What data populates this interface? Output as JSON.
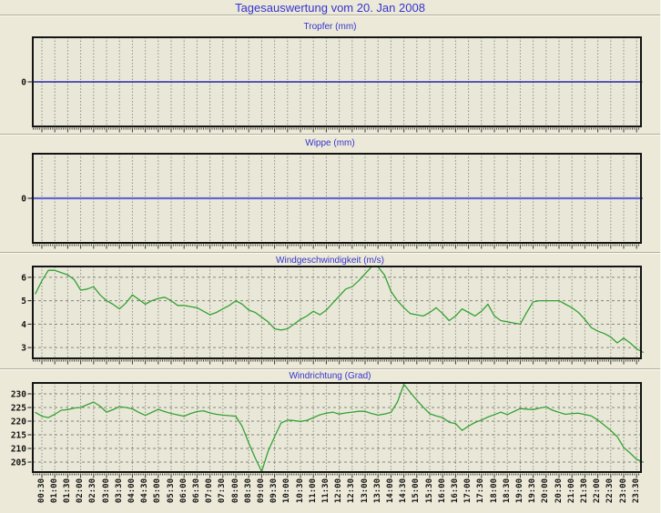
{
  "page": {
    "title": "Tagesauswertung vom 20. Jan 2008",
    "title_color": "#3434cf",
    "background": "#ece9d8",
    "plot_background": "#e9e8d8"
  },
  "x_axis": {
    "start_minutes": 30,
    "step_minutes": 30,
    "labels": [
      "00:30",
      "01:00",
      "01:30",
      "02:00",
      "02:30",
      "03:00",
      "03:30",
      "04:00",
      "04:30",
      "05:00",
      "05:30",
      "06:00",
      "06:30",
      "07:00",
      "07:30",
      "08:00",
      "08:30",
      "09:00",
      "09:30",
      "10:00",
      "10:30",
      "11:00",
      "11:30",
      "12:00",
      "12:30",
      "13:00",
      "13:30",
      "14:00",
      "14:30",
      "15:00",
      "15:30",
      "16:00",
      "16:30",
      "17:00",
      "17:30",
      "18:00",
      "18:30",
      "19:00",
      "19:30",
      "20:00",
      "20:30",
      "21:00",
      "21:30",
      "22:00",
      "22:30",
      "23:00",
      "23:30"
    ]
  },
  "chart_data": [
    {
      "id": "tropfer",
      "type": "line",
      "title": "Tropfer (mm)",
      "ylabel": "mm",
      "yticks": [
        0
      ],
      "ylim": [
        -1,
        1
      ],
      "hgrid": false,
      "line_color": "#0000a0",
      "line_width": 1.2,
      "times": [
        "00:07",
        "23:42"
      ],
      "values": [
        0,
        0
      ]
    },
    {
      "id": "wippe",
      "type": "line",
      "title": "Wippe (mm)",
      "ylabel": "mm",
      "yticks": [
        0
      ],
      "ylim": [
        -1,
        1
      ],
      "hgrid": false,
      "line_color": "#6565cf",
      "line_width": 2.2,
      "times": [
        "00:07",
        "23:42"
      ],
      "values": [
        0,
        0
      ]
    },
    {
      "id": "windgeschwindigkeit",
      "type": "line",
      "title": "Windgeschwindigkeit (m/s)",
      "ylabel": "m/s",
      "yticks": [
        6,
        5,
        4,
        3
      ],
      "ylim": [
        2.5,
        6.5
      ],
      "hgrid": true,
      "line_color": "#35a135",
      "line_width": 1.3,
      "times": [
        "00:15",
        "00:30",
        "00:45",
        "01:00",
        "01:15",
        "01:30",
        "01:45",
        "02:00",
        "02:15",
        "02:30",
        "02:45",
        "03:00",
        "03:15",
        "03:30",
        "03:45",
        "04:00",
        "04:15",
        "04:30",
        "04:45",
        "05:00",
        "05:15",
        "05:30",
        "05:45",
        "06:00",
        "06:15",
        "06:30",
        "06:45",
        "07:00",
        "07:15",
        "07:30",
        "07:45",
        "08:00",
        "08:15",
        "08:30",
        "08:45",
        "09:00",
        "09:15",
        "09:30",
        "09:45",
        "10:00",
        "10:15",
        "10:30",
        "10:45",
        "11:00",
        "11:15",
        "11:30",
        "11:45",
        "12:00",
        "12:15",
        "12:30",
        "12:45",
        "13:00",
        "13:15",
        "13:30",
        "13:45",
        "14:00",
        "14:15",
        "14:30",
        "14:45",
        "15:00",
        "15:15",
        "15:30",
        "15:45",
        "16:00",
        "16:15",
        "16:30",
        "16:45",
        "17:00",
        "17:15",
        "17:30",
        "17:45",
        "18:00",
        "18:15",
        "18:30",
        "18:45",
        "19:00",
        "19:15",
        "19:30",
        "19:45",
        "20:00",
        "20:15",
        "20:30",
        "20:45",
        "21:00",
        "21:15",
        "21:30",
        "21:45",
        "22:00",
        "22:15",
        "22:30",
        "22:45",
        "23:00",
        "23:15",
        "23:30",
        "23:45"
      ],
      "values": [
        5.3,
        5.85,
        6.3,
        6.3,
        6.2,
        6.1,
        5.9,
        5.45,
        5.5,
        5.6,
        5.25,
        5.0,
        4.85,
        4.65,
        4.9,
        5.25,
        5.05,
        4.85,
        5.0,
        5.1,
        5.15,
        5.0,
        4.8,
        4.8,
        4.75,
        4.7,
        4.55,
        4.4,
        4.5,
        4.65,
        4.8,
        5.0,
        4.85,
        4.6,
        4.5,
        4.3,
        4.1,
        3.8,
        3.75,
        3.8,
        4.0,
        4.2,
        4.35,
        4.55,
        4.4,
        4.6,
        4.9,
        5.2,
        5.5,
        5.6,
        5.85,
        6.15,
        6.45,
        6.45,
        6.1,
        5.4,
        5.0,
        4.7,
        4.45,
        4.4,
        4.35,
        4.5,
        4.7,
        4.45,
        4.15,
        4.35,
        4.65,
        4.5,
        4.35,
        4.55,
        4.85,
        4.35,
        4.15,
        4.1,
        4.05,
        4.0,
        4.5,
        4.95,
        5.0,
        5.0,
        5.0,
        5.0,
        4.85,
        4.7,
        4.5,
        4.2,
        3.85,
        3.7,
        3.6,
        3.45,
        3.2,
        3.4,
        3.2,
        2.95,
        2.8
      ]
    },
    {
      "id": "windrichtung",
      "type": "line",
      "title": "Windrichtung (Grad)",
      "ylabel": "Grad",
      "yticks": [
        230,
        225,
        220,
        215,
        210,
        205
      ],
      "ylim": [
        201,
        234.33
      ],
      "hgrid": true,
      "line_color": "#35a135",
      "line_width": 1.3,
      "times": [
        "00:15",
        "00:30",
        "00:45",
        "01:00",
        "01:15",
        "01:30",
        "01:45",
        "02:00",
        "02:15",
        "02:30",
        "02:45",
        "03:00",
        "03:15",
        "03:30",
        "03:45",
        "04:00",
        "04:15",
        "04:30",
        "04:45",
        "05:00",
        "05:15",
        "05:30",
        "05:45",
        "06:00",
        "06:15",
        "06:30",
        "06:45",
        "07:00",
        "07:15",
        "07:30",
        "07:45",
        "08:00",
        "08:15",
        "08:30",
        "08:45",
        "09:00",
        "09:15",
        "09:30",
        "09:45",
        "10:00",
        "10:15",
        "10:30",
        "10:45",
        "11:00",
        "11:15",
        "11:30",
        "11:45",
        "12:00",
        "12:15",
        "12:30",
        "12:45",
        "13:00",
        "13:15",
        "13:30",
        "13:45",
        "14:00",
        "14:15",
        "14:30",
        "14:45",
        "15:00",
        "15:15",
        "15:30",
        "15:45",
        "16:00",
        "16:15",
        "16:30",
        "16:45",
        "17:00",
        "17:15",
        "17:30",
        "17:45",
        "18:00",
        "18:15",
        "18:30",
        "18:45",
        "19:00",
        "19:15",
        "19:30",
        "19:45",
        "20:00",
        "20:15",
        "20:30",
        "20:45",
        "21:00",
        "21:15",
        "21:30",
        "21:45",
        "22:00",
        "22:15",
        "22:30",
        "22:45",
        "23:00",
        "23:15",
        "23:30",
        "23:45"
      ],
      "values": [
        223.2,
        221.8,
        221.3,
        222.5,
        224.0,
        224.2,
        224.8,
        225.0,
        226.0,
        227.0,
        225.5,
        223.3,
        224.2,
        225.3,
        225.0,
        224.5,
        223.2,
        222.1,
        223.2,
        224.3,
        223.5,
        222.8,
        222.3,
        221.8,
        222.8,
        223.5,
        223.8,
        223.0,
        222.5,
        222.2,
        222.0,
        221.8,
        218.0,
        212.0,
        206.5,
        201.5,
        209.0,
        214.3,
        219.3,
        220.4,
        220.2,
        219.9,
        220.3,
        221.3,
        222.3,
        222.9,
        223.3,
        222.6,
        223.0,
        223.3,
        223.6,
        223.6,
        222.8,
        222.2,
        222.6,
        223.2,
        227.0,
        233.5,
        230.5,
        227.7,
        225.1,
        222.7,
        221.9,
        221.3,
        219.6,
        219.1,
        216.6,
        218.2,
        219.5,
        220.4,
        221.5,
        222.4,
        223.3,
        222.4,
        223.5,
        224.6,
        224.4,
        224.2,
        224.8,
        225.2,
        224.0,
        223.2,
        222.5,
        222.8,
        222.9,
        222.4,
        221.9,
        220.4,
        218.5,
        216.6,
        214.3,
        210.4,
        208.3,
        206.0,
        205.0
      ]
    }
  ]
}
